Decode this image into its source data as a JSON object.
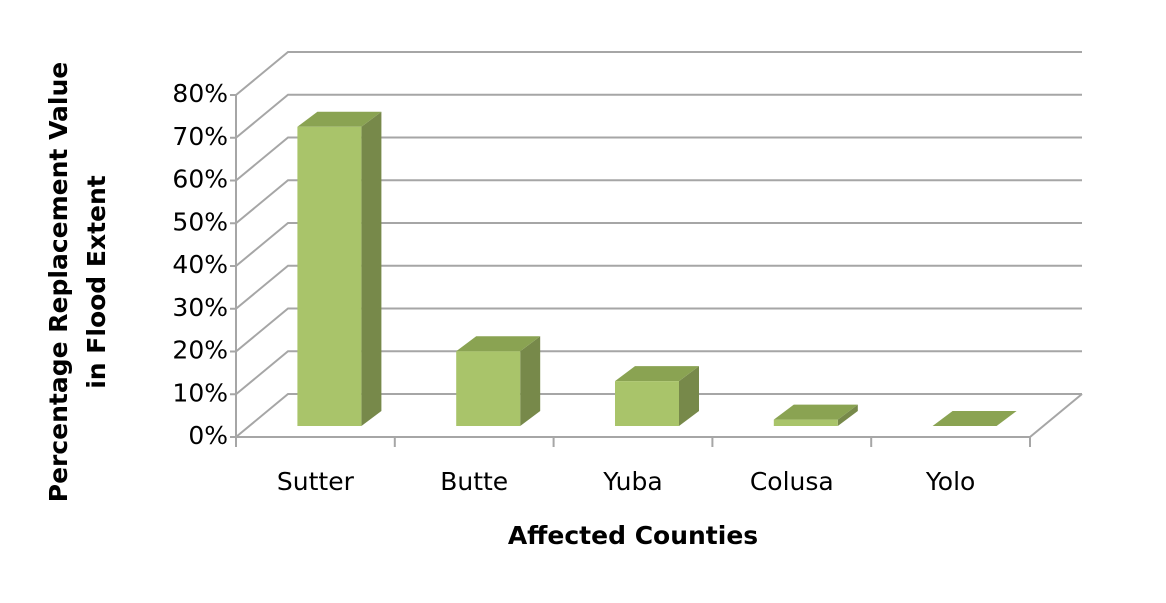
{
  "chart_data": {
    "type": "bar3d",
    "categories": [
      "Sutter",
      "Butte",
      "Yuba",
      "Colusa",
      "Yolo"
    ],
    "values": [
      70,
      17.5,
      10.5,
      1.5,
      0
    ],
    "color": "#a9c46a",
    "ylim": [
      0,
      80
    ],
    "yticks": [
      {
        "value": 0,
        "label": "0%"
      },
      {
        "value": 10,
        "label": "10%"
      },
      {
        "value": 20,
        "label": "20%"
      },
      {
        "value": 30,
        "label": "30%"
      },
      {
        "value": 40,
        "label": "40%"
      },
      {
        "value": 50,
        "label": "50%"
      },
      {
        "value": 60,
        "label": "60%"
      },
      {
        "value": 70,
        "label": "70%"
      },
      {
        "value": 80,
        "label": "80%"
      }
    ],
    "xlabel": "Affected Counties",
    "ylabel": [
      "Percentage Replacement Value",
      "in Flood Extent"
    ],
    "grid": true
  }
}
